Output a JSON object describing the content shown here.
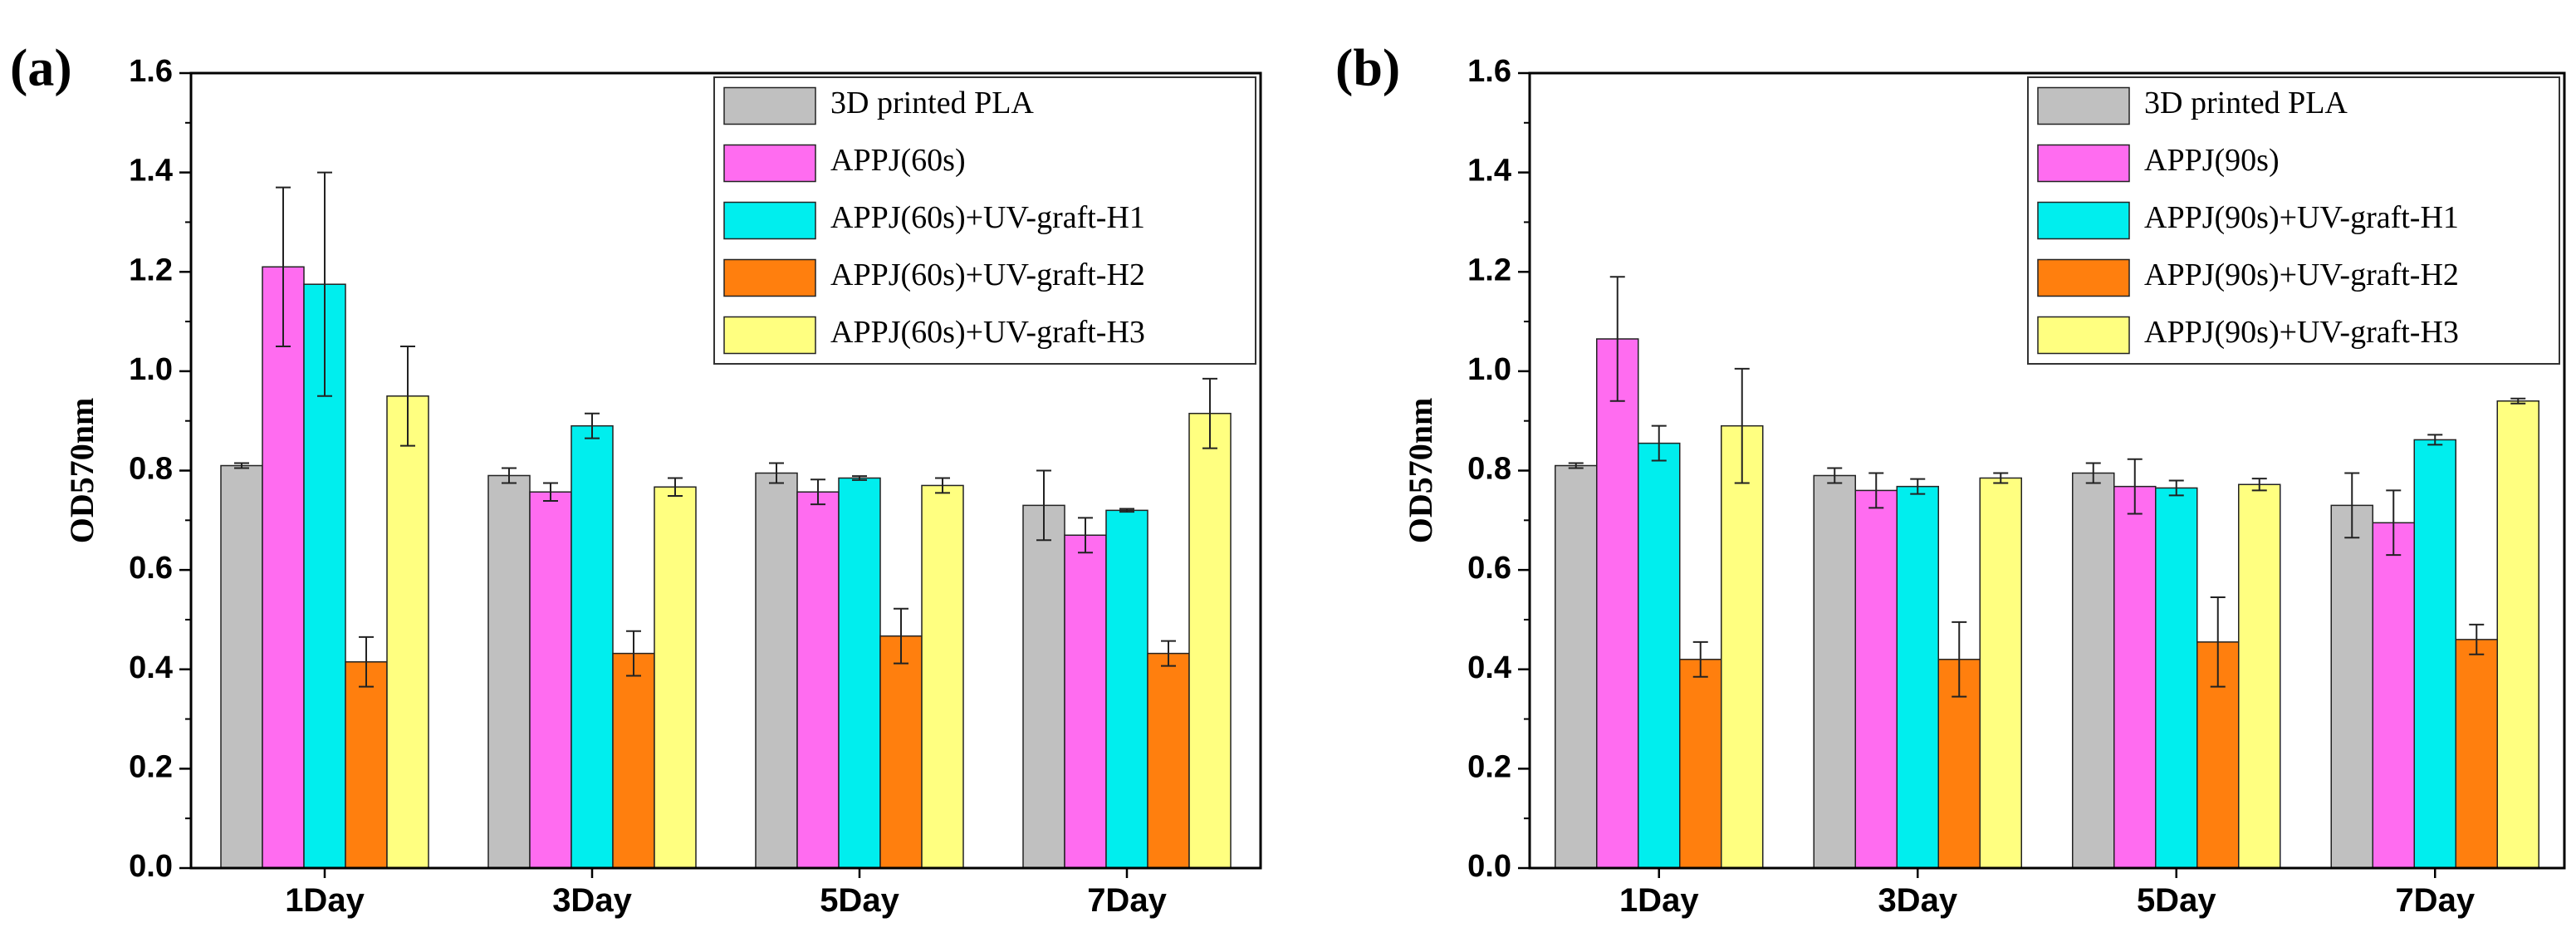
{
  "chart_data": [
    {
      "type": "bar",
      "panel_label": "(a)",
      "categories": [
        "1Day",
        "3Day",
        "5Day",
        "7Day"
      ],
      "ylabel": "OD570nm",
      "xlabel": "",
      "ylim": [
        0,
        1.6
      ],
      "yticks": [
        "0.0",
        "0.2",
        "0.4",
        "0.6",
        "0.8",
        "1.0",
        "1.2",
        "1.4",
        "1.6"
      ],
      "legend_position": "top-right",
      "series": [
        {
          "name": "3D printed PLA",
          "color": "#c0c0c0",
          "values": [
            0.81,
            0.79,
            0.795,
            0.73
          ],
          "errors": [
            0.005,
            0.015,
            0.02,
            0.07
          ]
        },
        {
          "name": "APPJ(60s)",
          "color": "#ff6cf0",
          "values": [
            1.21,
            0.757,
            0.757,
            0.67
          ],
          "errors": [
            0.16,
            0.018,
            0.025,
            0.035
          ]
        },
        {
          "name": "APPJ(60s)+UV-graft-H1",
          "color": "#00eeee",
          "values": [
            1.175,
            0.89,
            0.785,
            0.72
          ],
          "errors": [
            0.225,
            0.025,
            0.004,
            0.003
          ]
        },
        {
          "name": "APPJ(60s)+UV-graft-H2",
          "color": "#ff7f0e",
          "values": [
            0.415,
            0.432,
            0.467,
            0.432
          ],
          "errors": [
            0.05,
            0.045,
            0.055,
            0.025
          ]
        },
        {
          "name": "APPJ(60s)+UV-graft-H3",
          "color": "#ffff80",
          "values": [
            0.95,
            0.767,
            0.77,
            0.915
          ],
          "errors": [
            0.1,
            0.018,
            0.015,
            0.07
          ]
        }
      ]
    },
    {
      "type": "bar",
      "panel_label": "(b)",
      "categories": [
        "1Day",
        "3Day",
        "5Day",
        "7Day"
      ],
      "ylabel": "OD570nm",
      "xlabel": "",
      "ylim": [
        0,
        1.6
      ],
      "yticks": [
        "0.0",
        "0.2",
        "0.4",
        "0.6",
        "0.8",
        "1.0",
        "1.2",
        "1.4",
        "1.6"
      ],
      "legend_position": "top-right",
      "series": [
        {
          "name": "3D printed PLA",
          "color": "#c0c0c0",
          "values": [
            0.81,
            0.79,
            0.795,
            0.73
          ],
          "errors": [
            0.005,
            0.015,
            0.02,
            0.065
          ]
        },
        {
          "name": "APPJ(90s)",
          "color": "#ff6cf0",
          "values": [
            1.065,
            0.76,
            0.768,
            0.695
          ],
          "errors": [
            0.125,
            0.035,
            0.055,
            0.065
          ]
        },
        {
          "name": "APPJ(90s)+UV-graft-H1",
          "color": "#00eeee",
          "values": [
            0.855,
            0.768,
            0.765,
            0.862
          ],
          "errors": [
            0.035,
            0.015,
            0.015,
            0.01
          ]
        },
        {
          "name": "APPJ(90s)+UV-graft-H2",
          "color": "#ff7f0e",
          "values": [
            0.42,
            0.42,
            0.455,
            0.46
          ],
          "errors": [
            0.035,
            0.075,
            0.09,
            0.03
          ]
        },
        {
          "name": "APPJ(90s)+UV-graft-H3",
          "color": "#ffff80",
          "values": [
            0.89,
            0.785,
            0.772,
            0.94
          ],
          "errors": [
            0.115,
            0.01,
            0.012,
            0.005
          ]
        }
      ]
    }
  ]
}
